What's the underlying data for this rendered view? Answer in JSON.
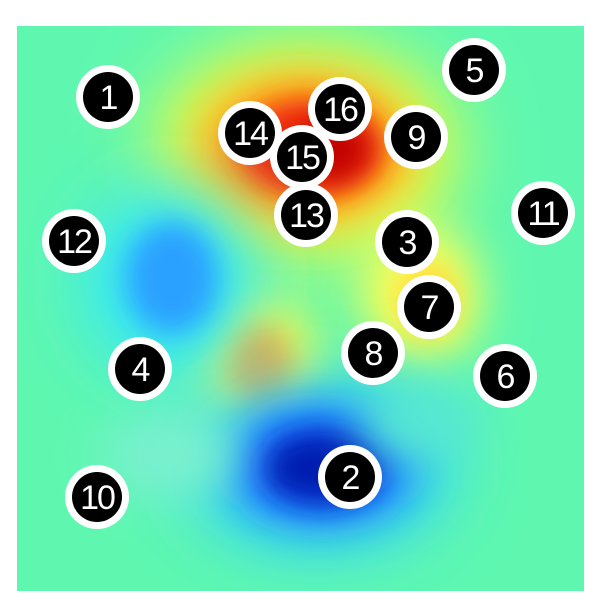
{
  "colors": {
    "background_field": "#5ff7b0",
    "marker_fill": "#000000",
    "marker_ring": "#ffffff",
    "marker_text": "#ffffff"
  },
  "markers": [
    {
      "label": "1"
    },
    {
      "label": "2"
    },
    {
      "label": "3"
    },
    {
      "label": "4"
    },
    {
      "label": "5"
    },
    {
      "label": "6"
    },
    {
      "label": "7"
    },
    {
      "label": "8"
    },
    {
      "label": "9"
    },
    {
      "label": "10"
    },
    {
      "label": "11"
    },
    {
      "label": "12"
    },
    {
      "label": "13"
    },
    {
      "label": "14"
    },
    {
      "label": "15"
    },
    {
      "label": "16"
    }
  ]
}
